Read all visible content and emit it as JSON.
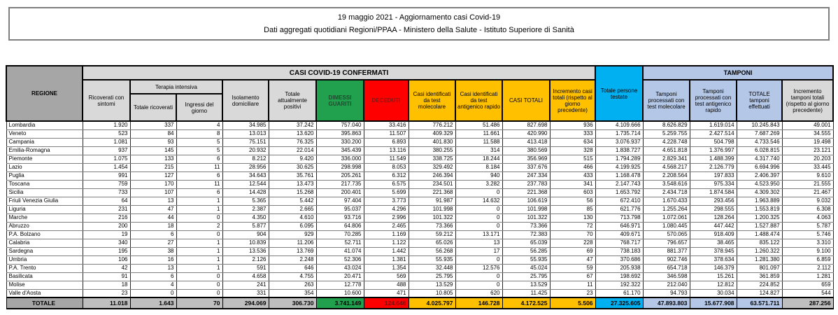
{
  "title": {
    "line1": "19 maggio 2021 - Aggiornamento casi Covid-19",
    "line2": "Dati aggregati quotidiani Regioni/PPAA - Ministero della Salute - Istituto Superiore di Sanità"
  },
  "colors": {
    "green": "#21a14d",
    "red": "#fe0000",
    "gold": "#ffc000",
    "cyan": "#00b0f0",
    "light_blue": "#b4c7e7",
    "header_light_gray": "#d9d9d9",
    "header_dark_gray": "#a6a6a6",
    "total_row_gray": "#bfbfbf"
  },
  "table": {
    "group_headers": {
      "casi": "CASI COVID-19 CONFERMATI",
      "tamponi": "TAMPONI",
      "terapia_intensiva": "Terapia intensiva"
    },
    "columns": {
      "regione": "REGIONE",
      "ricoverati": "Ricoverati con sintomi",
      "ti_totale": "Totale ricoverati",
      "ti_ingressi": "Ingressi del giorno",
      "isolamento": "Isolamento domiciliare",
      "attualmente_positivi": "Totale attualmente positivi",
      "dimessi": "DIMESSI GUARITI",
      "deceduti": "DECEDUTI",
      "casi_molecolare": "Casi identificati da test molecolare",
      "casi_antigenico": "Casi identificati da test antigenico rapido",
      "casi_totali": "CASI TOTALI",
      "incremento_casi": "Incremento casi totali (rispetto al giorno precedente)",
      "persone_testate": "Totale persone testate",
      "tamponi_molecolare": "Tamponi processati con test molecolare",
      "tamponi_antigenico": "Tamponi processati con test antigenico rapido",
      "tamponi_totale": "TOTALE tamponi effettuati",
      "incremento_tamponi": "Incremento tamponi totali (rispetto al giorno precedente)"
    },
    "rows": [
      {
        "regione": "Lombardia",
        "values": [
          "1.920",
          "337",
          "4",
          "34.985",
          "37.242",
          "757.040",
          "33.416",
          "776.212",
          "51.486",
          "827.698",
          "936",
          "4.109.666",
          "8.626.829",
          "1.619.014",
          "10.245.843",
          "49.001"
        ]
      },
      {
        "regione": "Veneto",
        "values": [
          "523",
          "84",
          "8",
          "13.013",
          "13.620",
          "395.863",
          "11.507",
          "409.329",
          "11.661",
          "420.990",
          "333",
          "1.735.714",
          "5.259.755",
          "2.427.514",
          "7.687.269",
          "34.555"
        ]
      },
      {
        "regione": "Campania",
        "values": [
          "1.081",
          "93",
          "5",
          "75.151",
          "76.325",
          "330.200",
          "6.893",
          "401.830",
          "11.588",
          "413.418",
          "634",
          "3.076.937",
          "4.228.748",
          "504.798",
          "4.733.546",
          "19.498"
        ]
      },
      {
        "regione": "Emilia-Romagna",
        "values": [
          "937",
          "145",
          "5",
          "20.932",
          "22.014",
          "345.439",
          "13.116",
          "380.255",
          "314",
          "380.569",
          "328",
          "1.838.727",
          "4.651.818",
          "1.376.997",
          "6.028.815",
          "23.121"
        ]
      },
      {
        "regione": "Piemonte",
        "values": [
          "1.075",
          "133",
          "6",
          "8.212",
          "9.420",
          "336.000",
          "11.549",
          "338.725",
          "18.244",
          "356.969",
          "515",
          "1.794.289",
          "2.829.341",
          "1.488.399",
          "4.317.740",
          "20.203"
        ]
      },
      {
        "regione": "Lazio",
        "values": [
          "1.454",
          "215",
          "11",
          "28.956",
          "30.625",
          "298.998",
          "8.053",
          "329.492",
          "8.184",
          "337.676",
          "466",
          "4.199.925",
          "4.568.217",
          "2.126.779",
          "6.694.996",
          "33.445"
        ]
      },
      {
        "regione": "Puglia",
        "values": [
          "991",
          "127",
          "6",
          "34.643",
          "35.761",
          "205.261",
          "6.312",
          "246.394",
          "940",
          "247.334",
          "433",
          "1.168.478",
          "2.208.564",
          "197.833",
          "2.406.397",
          "9.610"
        ]
      },
      {
        "regione": "Toscana",
        "values": [
          "759",
          "170",
          "11",
          "12.544",
          "13.473",
          "217.735",
          "6.575",
          "234.501",
          "3.282",
          "237.783",
          "341",
          "2.147.743",
          "3.548.616",
          "975.334",
          "4.523.950",
          "21.555"
        ]
      },
      {
        "regione": "Sicilia",
        "values": [
          "733",
          "107",
          "6",
          "14.428",
          "15.268",
          "200.401",
          "5.699",
          "221.368",
          "0",
          "221.368",
          "603",
          "1.653.792",
          "2.434.718",
          "1.874.584",
          "4.309.302",
          "21.467"
        ]
      },
      {
        "regione": "Friuli Venezia Giulia",
        "values": [
          "64",
          "13",
          "1",
          "5.365",
          "5.442",
          "97.404",
          "3.773",
          "91.987",
          "14.632",
          "106.619",
          "56",
          "672.410",
          "1.670.433",
          "293.456",
          "1.963.889",
          "9.032"
        ]
      },
      {
        "regione": "Liguria",
        "values": [
          "231",
          "47",
          "1",
          "2.387",
          "2.665",
          "95.037",
          "4.296",
          "101.998",
          "0",
          "101.998",
          "85",
          "621.776",
          "1.255.264",
          "298.555",
          "1.553.819",
          "6.308"
        ]
      },
      {
        "regione": "Marche",
        "values": [
          "216",
          "44",
          "0",
          "4.350",
          "4.610",
          "93.716",
          "2.996",
          "101.322",
          "0",
          "101.322",
          "130",
          "713.798",
          "1.072.061",
          "128.264",
          "1.200.325",
          "4.063"
        ]
      },
      {
        "regione": "Abruzzo",
        "values": [
          "200",
          "18",
          "2",
          "5.877",
          "6.095",
          "64.806",
          "2.465",
          "73.366",
          "0",
          "73.366",
          "72",
          "646.971",
          "1.080.445",
          "447.442",
          "1.527.887",
          "5.787"
        ]
      },
      {
        "regione": "P.A. Bolzano",
        "values": [
          "19",
          "6",
          "0",
          "904",
          "929",
          "70.285",
          "1.169",
          "59.212",
          "13.171",
          "72.383",
          "70",
          "409.671",
          "570.065",
          "918.409",
          "1.488.474",
          "5.746"
        ]
      },
      {
        "regione": "Calabria",
        "values": [
          "340",
          "27",
          "1",
          "10.839",
          "11.206",
          "52.711",
          "1.122",
          "65.026",
          "13",
          "65.039",
          "228",
          "768.717",
          "796.657",
          "38.465",
          "835.122",
          "3.310"
        ]
      },
      {
        "regione": "Sardegna",
        "values": [
          "195",
          "38",
          "1",
          "13.536",
          "13.769",
          "41.074",
          "1.442",
          "56.268",
          "17",
          "56.285",
          "69",
          "738.183",
          "881.377",
          "378.945",
          "1.260.322",
          "9.100"
        ]
      },
      {
        "regione": "Umbria",
        "values": [
          "106",
          "16",
          "1",
          "2.126",
          "2.248",
          "52.306",
          "1.381",
          "55.935",
          "0",
          "55.935",
          "47",
          "370.686",
          "902.746",
          "378.634",
          "1.281.380",
          "6.859"
        ]
      },
      {
        "regione": "P.A. Trento",
        "values": [
          "42",
          "13",
          "1",
          "591",
          "646",
          "43.024",
          "1.354",
          "32.448",
          "12.576",
          "45.024",
          "59",
          "205.938",
          "654.718",
          "146.379",
          "801.097",
          "2.112"
        ]
      },
      {
        "regione": "Basilicata",
        "values": [
          "91",
          "6",
          "0",
          "4.658",
          "4.755",
          "20.471",
          "569",
          "25.795",
          "0",
          "25.795",
          "67",
          "198.692",
          "346.598",
          "15.261",
          "361.859",
          "1.281"
        ]
      },
      {
        "regione": "Molise",
        "values": [
          "18",
          "4",
          "0",
          "241",
          "263",
          "12.778",
          "488",
          "13.529",
          "0",
          "13.529",
          "11",
          "192.322",
          "212.040",
          "12.812",
          "224.852",
          "659"
        ]
      },
      {
        "regione": "Valle d'Aosta",
        "values": [
          "23",
          "0",
          "0",
          "331",
          "354",
          "10.600",
          "471",
          "10.805",
          "620",
          "11.425",
          "23",
          "61.170",
          "94.793",
          "30.034",
          "124.827",
          "544"
        ]
      }
    ],
    "total": {
      "regione": "TOTALE",
      "values": [
        "11.018",
        "1.643",
        "70",
        "294.069",
        "306.730",
        "3.741.149",
        "124.646",
        "4.025.797",
        "146.728",
        "4.172.525",
        "5.506",
        "27.325.605",
        "47.893.803",
        "15.677.908",
        "63.571.711",
        "287.256"
      ]
    }
  }
}
